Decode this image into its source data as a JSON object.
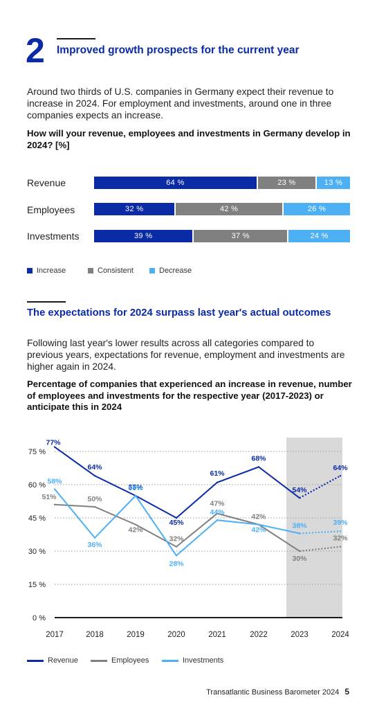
{
  "section": {
    "number": "2",
    "title": "Improved growth prospects for the current year",
    "intro": "Around two thirds of U.S. companies in Germany expect their revenue to increase in 2024. For employment and investments, around one in three companies expects an increase.",
    "question": "How will your revenue, employees and investments in Germany develop in 2024? [%]"
  },
  "section2": {
    "title": "The expectations for 2024 surpass last year's actual outcomes",
    "intro": "Following last year's lower results across all categories compared to previous years, expectations for revenue, employment and investments are higher again in 2024.",
    "question": "Percentage of companies that experienced an increase in revenue, number of employees and investments for the respective year (2017-2023) or anticipate this in 2024"
  },
  "colors": {
    "increase": "#0a2aa6",
    "consistent": "#808080",
    "decrease": "#4db0f5"
  },
  "chart_data": [
    {
      "type": "bar",
      "stacked": true,
      "orientation": "horizontal",
      "categories": [
        "Revenue",
        "Employees",
        "Investments"
      ],
      "series": [
        {
          "name": "Increase",
          "values": [
            64,
            32,
            39
          ]
        },
        {
          "name": "Consistent",
          "values": [
            23,
            42,
            37
          ]
        },
        {
          "name": "Decrease",
          "values": [
            13,
            26,
            24
          ]
        }
      ],
      "legend_position": "bottom-left"
    },
    {
      "type": "line",
      "x": [
        "2017",
        "2018",
        "2019",
        "2020",
        "2021",
        "2022",
        "2023",
        "2024"
      ],
      "series": [
        {
          "name": "Revenue",
          "values": [
            77,
            64,
            55,
            45,
            61,
            68,
            54,
            64
          ]
        },
        {
          "name": "Employees",
          "values": [
            51,
            50,
            42,
            32,
            47,
            42,
            30,
            32
          ]
        },
        {
          "name": "Investments",
          "values": [
            58,
            36,
            55,
            28,
            44,
            42,
            38,
            39
          ]
        }
      ],
      "yticks": [
        "0 %",
        "15 %",
        "30 %",
        "45 %",
        "60 %",
        "75 %"
      ],
      "ylim": [
        0,
        80
      ],
      "grid": "dotted horizontal",
      "highlight_region": "2023-2024",
      "projected_segment": "2023-2024 dotted",
      "legend_position": "bottom-left"
    }
  ],
  "footer": {
    "text": "Transatlantic Business Barometer 2024",
    "page": "5"
  }
}
